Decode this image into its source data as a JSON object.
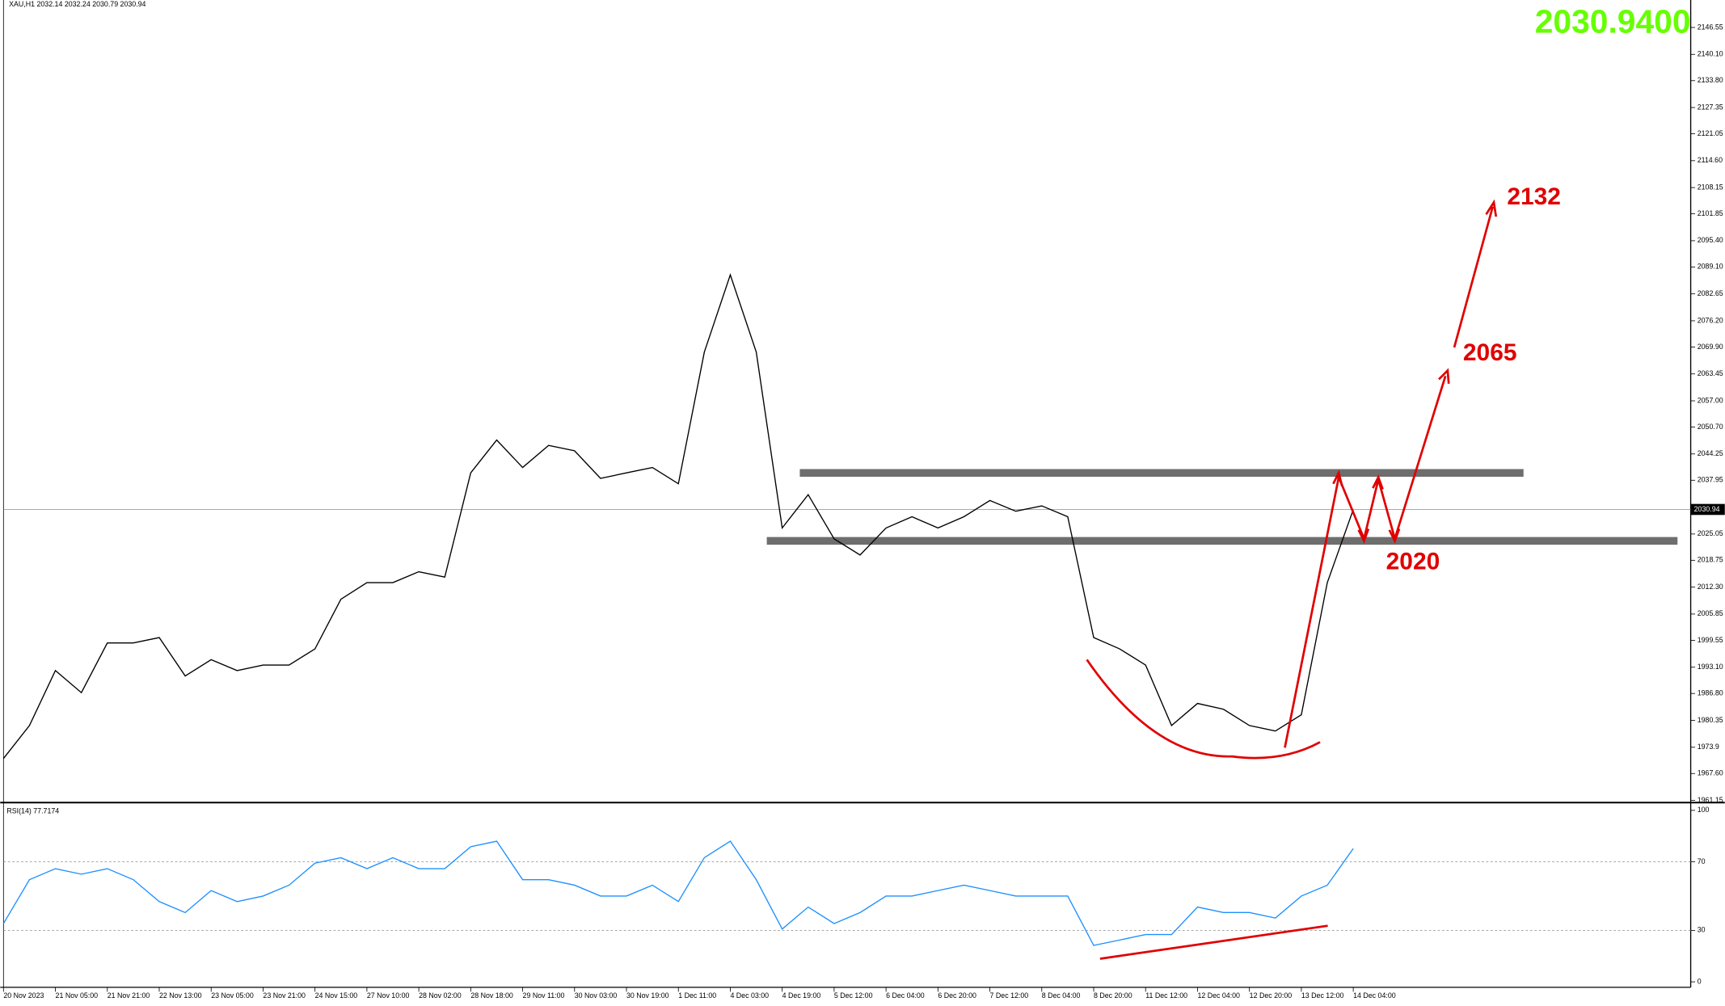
{
  "header": "XAU,H1  2032.14 2032.24 2030.79 2030.94",
  "price_display": "2030.9400",
  "annotations": [
    "2132",
    "2065",
    "2020"
  ],
  "chart_data": [
    {
      "type": "line",
      "color": "#000000",
      "categories": [
        "20 Nov 2023",
        null,
        "21 Nov 05:00",
        null,
        "21 Nov 21:00",
        null,
        "22 Nov 13:00",
        null,
        "23 Nov 05:00",
        null,
        "23 Nov 21:00",
        null,
        "24 Nov 15:00",
        null,
        "27 Nov 10:00",
        null,
        "28 Nov 02:00",
        null,
        "28 Nov 18:00",
        null,
        "29 Nov 11:00",
        null,
        "30 Nov 03:00",
        null,
        "30 Nov 19:00",
        null,
        "1 Dec 11:00",
        null,
        "4 Dec 03:00",
        null,
        "4 Dec 19:00",
        null,
        "5 Dec 12:00",
        null,
        "6 Dec 04:00",
        null,
        "6 Dec 20:00",
        null,
        "7 Dec 12:00",
        null,
        "8 Dec 04:00",
        null,
        "8 Dec 20:00",
        null,
        "11 Dec 12:00",
        null,
        "12 Dec 04:00",
        null,
        "12 Dec 20:00",
        null,
        "13 Dec 12:00",
        null,
        "14 Dec 04:00"
      ],
      "values": [
        1971.2,
        1979.1,
        1992.3,
        1987,
        1998.9,
        1998.9,
        2000.2,
        1991,
        1994.9,
        1992.3,
        1993.6,
        1993.6,
        1997.5,
        2009.4,
        2013.4,
        2013.4,
        2016,
        2014.7,
        2039.7,
        2047.6,
        2041,
        2046.3,
        2045,
        2038.4,
        2039.7,
        2041,
        2037.1,
        2068.7,
        2087.2,
        2068.7,
        2026.5,
        2034.5,
        2023.9,
        2020,
        2026.5,
        2029.2,
        2026.5,
        2029.2,
        2033.1,
        2030.5,
        2031.8,
        2029.2,
        2000.2,
        1997.5,
        1993.6,
        1979.1,
        1984.4,
        1983,
        1979.1,
        1977.8,
        1981.7,
        2013.4,
        2030.9
      ],
      "ylim": [
        1960.62,
        2153.14
      ],
      "yticks": [
        1961.15,
        {
          "value": 1967.6,
          "label": "1967.60"
        },
        1973.9,
        1980.35,
        {
          "value": 1986.8,
          "label": "1986.80"
        },
        {
          "value": 1993.1,
          "label": "1993.10"
        },
        1999.55,
        2005.85,
        {
          "value": 2012.3,
          "label": "2012.30"
        },
        2018.75,
        2025.05,
        2037.95,
        2044.25,
        {
          "value": 2050.7,
          "label": "2050.70"
        },
        {
          "value": 2057,
          "label": "2057.00"
        },
        2063.45,
        {
          "value": 2069.9,
          "label": "2069.90"
        },
        {
          "value": 2076.2,
          "label": "2076.20"
        },
        2082.65,
        {
          "value": 2089.1,
          "label": "2089.10"
        },
        {
          "value": 2095.4,
          "label": "2095.40"
        },
        2101.85,
        2108.15,
        {
          "value": 2114.6,
          "label": "2114.60"
        },
        2121.05,
        2127.35,
        {
          "value": 2133.8,
          "label": "2133.80"
        },
        {
          "value": 2140.1,
          "label": "2140.10"
        },
        2146.55
      ],
      "current_price": 2030.94,
      "zones": [
        2039.7,
        2023.4
      ]
    },
    {
      "type": "line",
      "title": "RSI(14) 77.7174",
      "color": "#1e90ff",
      "values": [
        34,
        59.6,
        66,
        62.8,
        66,
        59.6,
        46.8,
        40.4,
        53.2,
        46.8,
        50,
        56.4,
        69.2,
        72.4,
        66,
        72.4,
        66,
        66,
        78.8,
        82,
        59.6,
        59.6,
        56.4,
        50,
        50,
        56.4,
        46.8,
        72.4,
        82,
        59.6,
        30.8,
        43.6,
        34,
        40.4,
        50,
        50,
        53.2,
        56.4,
        53.2,
        50,
        50,
        50,
        21.2,
        24.4,
        27.6,
        27.6,
        43.6,
        40.4,
        40.4,
        37.2,
        50,
        56.4,
        77.7
      ],
      "ylim": [
        -3.2,
        102.6
      ],
      "yticks": [
        100,
        70,
        30,
        0
      ],
      "level_lines": [
        70,
        30
      ]
    }
  ]
}
